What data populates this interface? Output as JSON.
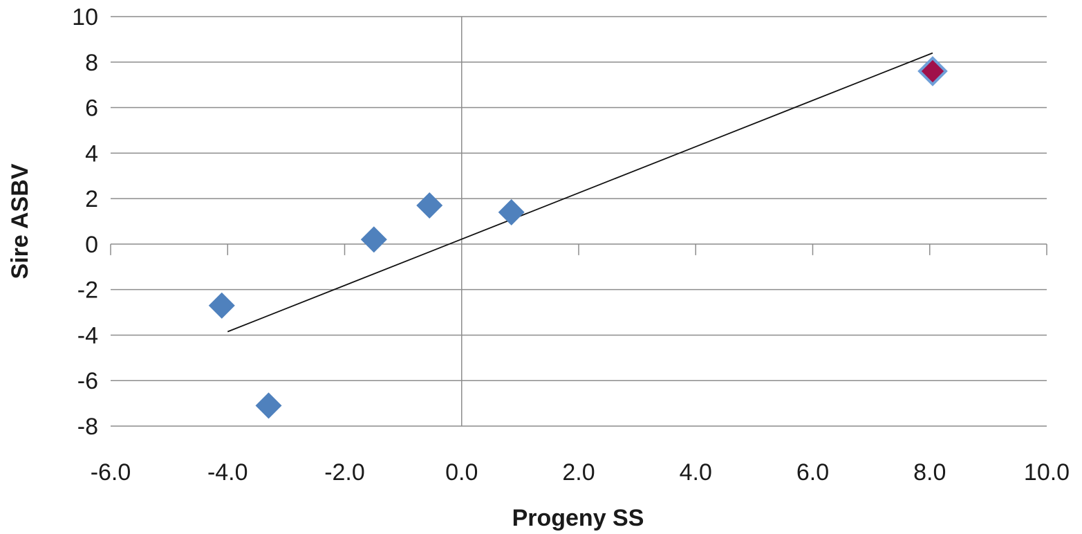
{
  "chart_data": {
    "type": "scatter",
    "title": "",
    "xlabel": "Progeny SS",
    "ylabel": "Sire ASBV",
    "xlim": [
      -6,
      10
    ],
    "ylim": [
      -8,
      10
    ],
    "x_ticks": [
      "-6.0",
      "-4.0",
      "-2.0",
      "0.0",
      "2.0",
      "4.0",
      "6.0",
      "8.0",
      "10.0"
    ],
    "y_ticks": [
      "10",
      "8",
      "6",
      "4",
      "2",
      "0",
      "-2",
      "-4",
      "-6",
      "-8"
    ],
    "grid": "horizontal",
    "series": [
      {
        "marker": "diamond",
        "color": "#4f81bd",
        "points": [
          {
            "x": -4.1,
            "y": -2.7
          },
          {
            "x": -3.3,
            "y": -7.1
          },
          {
            "x": -1.5,
            "y": 0.2
          },
          {
            "x": -0.55,
            "y": 1.7
          },
          {
            "x": 0.85,
            "y": 1.4
          }
        ]
      },
      {
        "marker": "diamond",
        "color": "#a0104a",
        "edge_color": "#6f9fd8",
        "points": [
          {
            "x": 8.05,
            "y": 7.6
          }
        ]
      }
    ],
    "trendline": {
      "color": "#111111",
      "from": {
        "x": -4.0,
        "y": -3.85
      },
      "to": {
        "x": 8.05,
        "y": 8.4
      }
    }
  }
}
